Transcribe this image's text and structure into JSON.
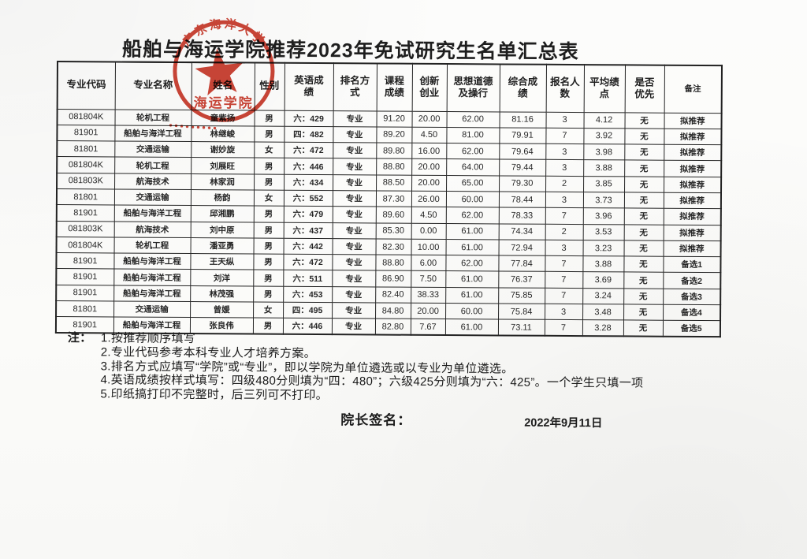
{
  "colors": {
    "stamp_red": "#c23526",
    "ink": "#1e1e1e",
    "paper": "#fbfbf9"
  },
  "document": {
    "title": "船舶与海运学院推荐2023年免试研究生名单汇总表",
    "title_underlined": "船舶与海运学",
    "title_rest": "院推荐2023年免试研究生名单汇总表"
  },
  "stamp": {
    "arc_text": "广东海洋大学",
    "bottom_text": "海运学院"
  },
  "table": {
    "headers": [
      "专业代码",
      "专业名称",
      "姓名",
      "性别",
      "英语成\n绩",
      "排名方\n式",
      "课程\n成绩",
      "创新\n创业",
      "思想道德\n及操行",
      "综合成\n绩",
      "报名人\n数",
      "平均绩\n点",
      "是否\n优先",
      "备注"
    ],
    "rows": [
      [
        "081804K",
        "轮机工程",
        "童紫扬",
        "男",
        "六：429",
        "专业",
        "91.20",
        "20.00",
        "62.00",
        "81.16",
        "3",
        "4.12",
        "无",
        "拟推荐"
      ],
      [
        "81901",
        "船舶与海洋工程",
        "林继峻",
        "男",
        "四：482",
        "专业",
        "89.20",
        "4.50",
        "81.00",
        "79.91",
        "7",
        "3.92",
        "无",
        "拟推荐"
      ],
      [
        "81801",
        "交通运输",
        "谢妙旋",
        "女",
        "六：472",
        "专业",
        "89.80",
        "16.00",
        "62.00",
        "79.64",
        "3",
        "3.98",
        "无",
        "拟推荐"
      ],
      [
        "081804K",
        "轮机工程",
        "刘展旺",
        "男",
        "六：446",
        "专业",
        "88.80",
        "20.00",
        "64.00",
        "79.44",
        "3",
        "3.88",
        "无",
        "拟推荐"
      ],
      [
        "081803K",
        "航海技术",
        "林家润",
        "男",
        "六：434",
        "专业",
        "88.50",
        "20.00",
        "65.00",
        "79.30",
        "2",
        "3.85",
        "无",
        "拟推荐"
      ],
      [
        "81801",
        "交通运输",
        "杨韵",
        "女",
        "六：552",
        "专业",
        "87.30",
        "26.00",
        "60.00",
        "78.44",
        "3",
        "3.73",
        "无",
        "拟推荐"
      ],
      [
        "81901",
        "船舶与海洋工程",
        "邱湘鹏",
        "男",
        "六：479",
        "专业",
        "89.60",
        "4.50",
        "62.00",
        "78.33",
        "7",
        "3.96",
        "无",
        "拟推荐"
      ],
      [
        "081803K",
        "航海技术",
        "刘中原",
        "男",
        "六：437",
        "专业",
        "85.30",
        "0.00",
        "61.00",
        "74.34",
        "2",
        "3.53",
        "无",
        "拟推荐"
      ],
      [
        "081804K",
        "轮机工程",
        "潘亚勇",
        "男",
        "六：442",
        "专业",
        "82.30",
        "10.00",
        "61.00",
        "72.94",
        "3",
        "3.23",
        "无",
        "拟推荐"
      ],
      [
        "81901",
        "船舶与海洋工程",
        "王天纵",
        "男",
        "六：472",
        "专业",
        "88.80",
        "6.00",
        "62.00",
        "77.84",
        "7",
        "3.88",
        "无",
        "备选1"
      ],
      [
        "81901",
        "船舶与海洋工程",
        "刘洋",
        "男",
        "六：511",
        "专业",
        "86.90",
        "7.50",
        "61.00",
        "76.37",
        "7",
        "3.69",
        "无",
        "备选2"
      ],
      [
        "81901",
        "船舶与海洋工程",
        "林茂强",
        "男",
        "六：453",
        "专业",
        "82.40",
        "38.33",
        "61.00",
        "75.85",
        "7",
        "3.24",
        "无",
        "备选3"
      ],
      [
        "81801",
        "交通运输",
        "曾媛",
        "女",
        "四：495",
        "专业",
        "84.80",
        "20.00",
        "60.00",
        "75.84",
        "3",
        "3.48",
        "无",
        "备选4"
      ],
      [
        "81901",
        "船舶与海洋工程",
        "张良伟",
        "男",
        "六：446",
        "专业",
        "82.80",
        "7.67",
        "61.00",
        "73.11",
        "7",
        "3.28",
        "无",
        "备选5"
      ]
    ]
  },
  "notes": {
    "label": "注：",
    "items": [
      "1.按推荐顺序填写",
      "2.专业代码参考本科专业人才培养方案。",
      "3.排名方式应填写“学院”或“专业”，即以学院为单位遴选或以专业为单位遴选。",
      "4.英语成绩按样式填写：四级480分则填为“四：480”；六级425分则填为“六：425”。一个学生只填一项",
      "5.印纸搞打印不完整时，后三列可不打印。"
    ]
  },
  "signature": {
    "label": "院长签名：",
    "date": "2022年9月11日"
  }
}
